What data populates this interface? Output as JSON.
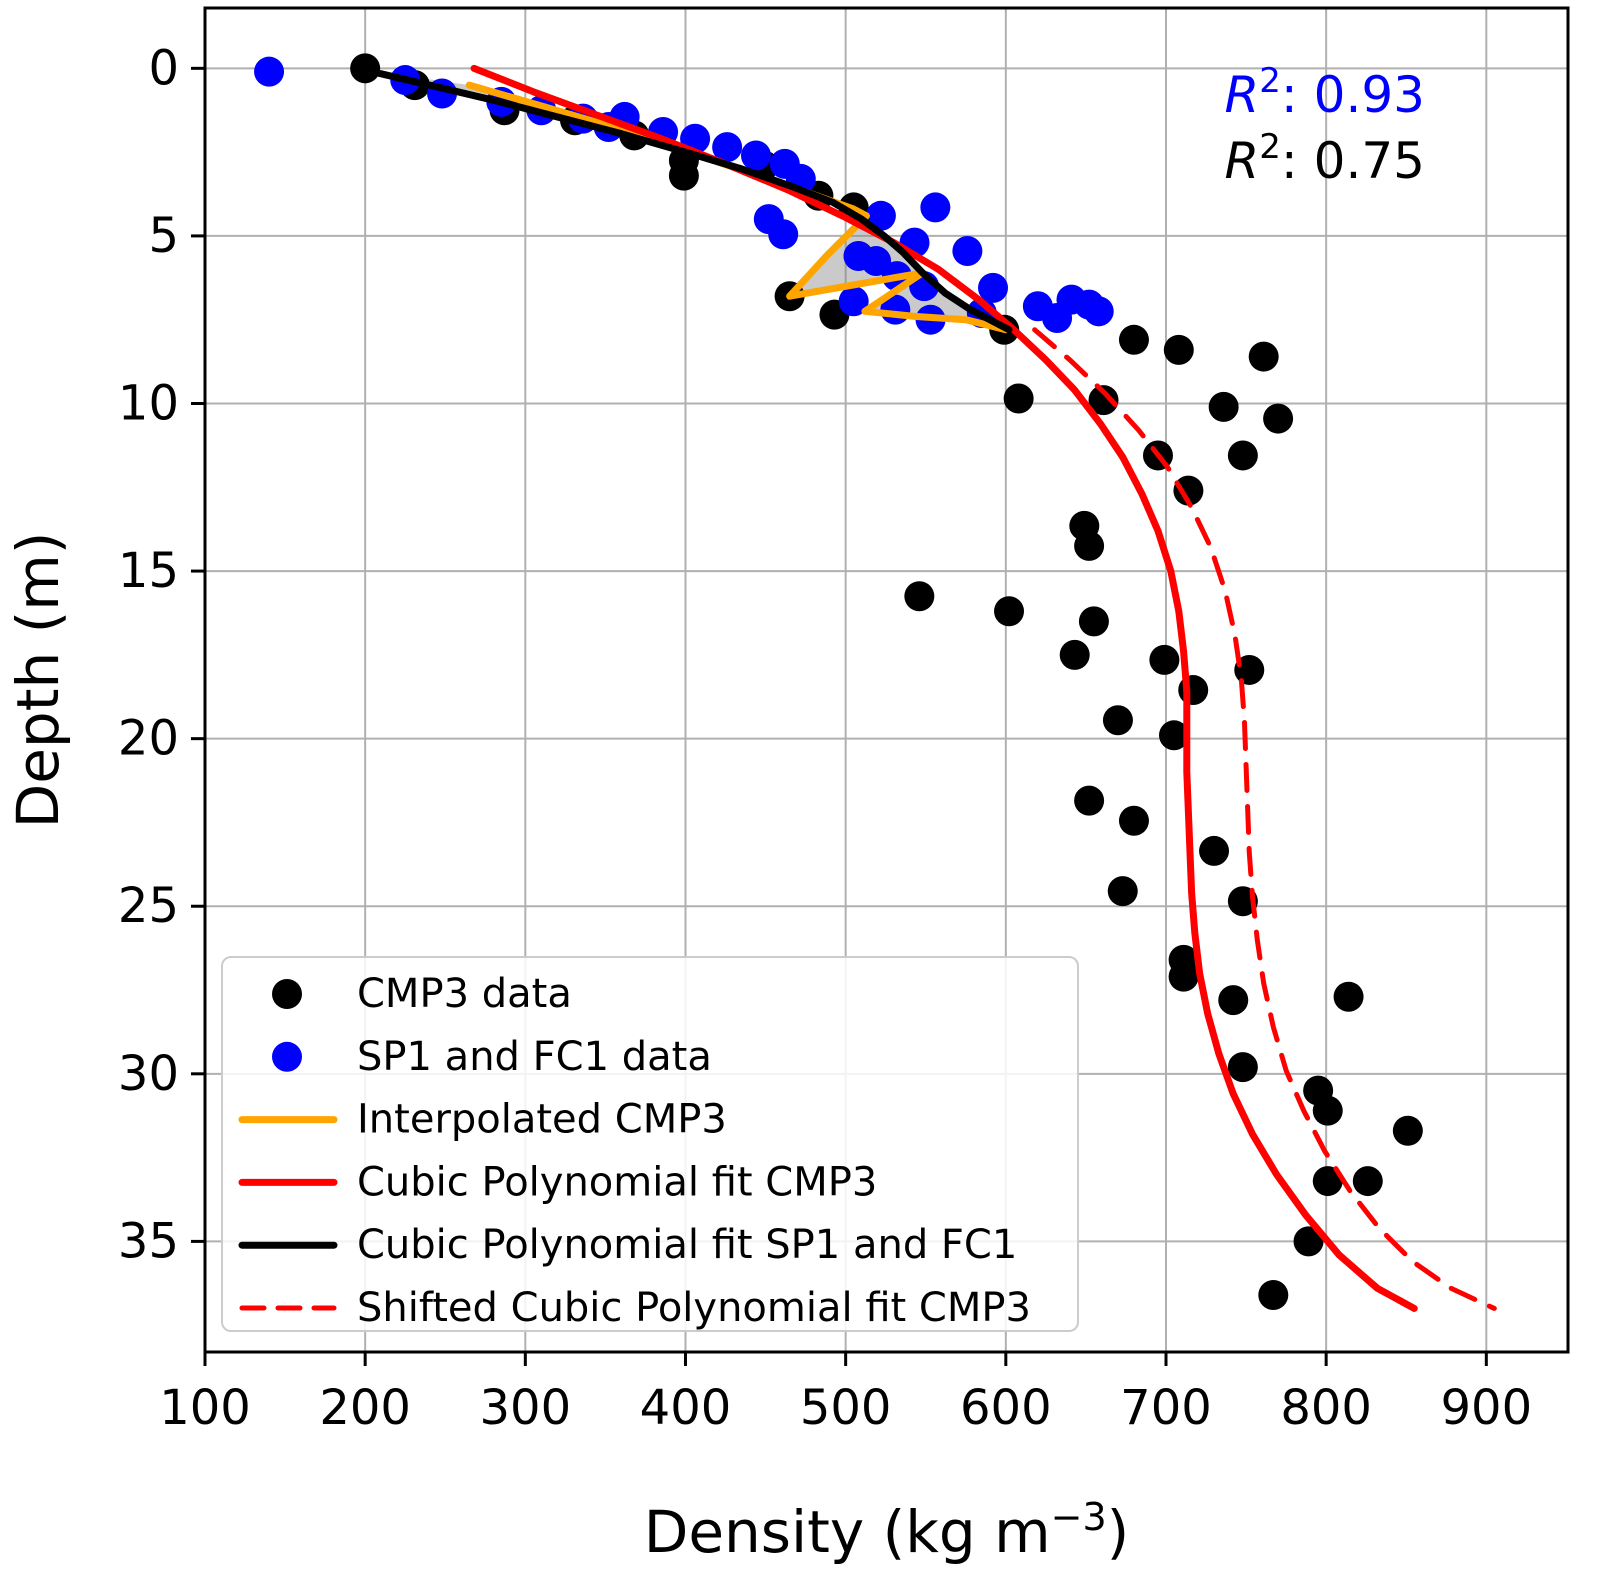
{
  "figure": {
    "background": "#ffffff",
    "annotations": [
      {
        "name": "r2-blue",
        "base": "R",
        "sup": "2",
        "rest": ": 0.93",
        "color": "#0000ff"
      },
      {
        "name": "r2-black",
        "base": "R",
        "sup": "2",
        "rest": ": 0.75",
        "color": "#000000"
      }
    ]
  },
  "chart_data": {
    "type": "scatter",
    "title": "",
    "xlabel": "Density (kg m−3)",
    "xlabel_parts": {
      "base": "Density (kg m",
      "sup": "−3",
      "close": ")"
    },
    "ylabel": "Depth (m)",
    "xlim": [
      100,
      951
    ],
    "ylim": [
      -1.8,
      38.3
    ],
    "y_inverted": true,
    "grid": true,
    "grid_color": "#b0b0b0",
    "xticks": [
      100,
      200,
      300,
      400,
      500,
      600,
      700,
      800,
      900
    ],
    "yticks": [
      0,
      5,
      10,
      15,
      20,
      25,
      30,
      35
    ],
    "shaded_region": {
      "color": "#8a8a8a",
      "opacity": 0.45,
      "between": [
        "Interpolated CMP3",
        "Cubic Polynomial fit SP1 and FC1"
      ]
    },
    "series": [
      {
        "name": "CMP3 data",
        "type": "scatter",
        "color": "#000000",
        "points": [
          [
            200,
            0.0
          ],
          [
            231,
            0.5
          ],
          [
            287,
            1.25
          ],
          [
            331,
            1.55
          ],
          [
            368,
            2.0
          ],
          [
            399,
            2.75
          ],
          [
            399,
            3.2
          ],
          [
            449,
            2.9
          ],
          [
            483,
            3.8
          ],
          [
            505,
            4.15
          ],
          [
            465,
            6.8
          ],
          [
            493,
            7.35
          ],
          [
            599,
            7.8
          ],
          [
            680,
            8.1
          ],
          [
            708,
            8.4
          ],
          [
            761,
            8.6
          ],
          [
            608,
            9.85
          ],
          [
            661,
            9.9
          ],
          [
            736,
            10.1
          ],
          [
            770,
            10.45
          ],
          [
            695,
            11.55
          ],
          [
            748,
            11.55
          ],
          [
            714,
            12.6
          ],
          [
            649,
            13.65
          ],
          [
            652,
            14.25
          ],
          [
            546,
            15.75
          ],
          [
            602,
            16.2
          ],
          [
            655,
            16.5
          ],
          [
            643,
            17.5
          ],
          [
            699,
            17.65
          ],
          [
            752,
            17.95
          ],
          [
            717,
            18.55
          ],
          [
            670,
            19.45
          ],
          [
            705,
            19.9
          ],
          [
            652,
            21.85
          ],
          [
            680,
            22.45
          ],
          [
            730,
            23.35
          ],
          [
            673,
            24.55
          ],
          [
            748,
            24.85
          ],
          [
            711,
            26.6
          ],
          [
            711,
            27.1
          ],
          [
            742,
            27.8
          ],
          [
            814,
            27.7
          ],
          [
            748,
            29.8
          ],
          [
            795,
            30.5
          ],
          [
            801,
            31.1
          ],
          [
            851,
            31.7
          ],
          [
            801,
            33.2
          ],
          [
            826,
            33.2
          ],
          [
            789,
            35.0
          ],
          [
            767,
            36.6
          ]
        ]
      },
      {
        "name": "SP1 and FC1 data",
        "type": "scatter",
        "color": "#0000ff",
        "points": [
          [
            140,
            0.1
          ],
          [
            225,
            0.35
          ],
          [
            248,
            0.75
          ],
          [
            285,
            1.0
          ],
          [
            310,
            1.25
          ],
          [
            336,
            1.5
          ],
          [
            362,
            1.45
          ],
          [
            352,
            1.75
          ],
          [
            386,
            1.9
          ],
          [
            406,
            2.1
          ],
          [
            426,
            2.35
          ],
          [
            444,
            2.6
          ],
          [
            462,
            2.85
          ],
          [
            472,
            3.3
          ],
          [
            452,
            4.5
          ],
          [
            461,
            4.95
          ],
          [
            522,
            4.4
          ],
          [
            556,
            4.15
          ],
          [
            543,
            5.2
          ],
          [
            576,
            5.45
          ],
          [
            519,
            5.75
          ],
          [
            508,
            5.6
          ],
          [
            532,
            6.2
          ],
          [
            549,
            6.5
          ],
          [
            592,
            6.55
          ],
          [
            505,
            6.95
          ],
          [
            531,
            7.2
          ],
          [
            553,
            7.5
          ],
          [
            585,
            7.3
          ],
          [
            620,
            7.1
          ],
          [
            641,
            6.9
          ],
          [
            652,
            7.05
          ],
          [
            658,
            7.25
          ],
          [
            632,
            7.45
          ]
        ]
      },
      {
        "name": "Interpolated CMP3",
        "type": "line",
        "color": "#ffa500",
        "width": 7,
        "points": [
          [
            265,
            0.5
          ],
          [
            312,
            1.15
          ],
          [
            358,
            1.8
          ],
          [
            402,
            2.5
          ],
          [
            433,
            3.0
          ],
          [
            470,
            3.6
          ],
          [
            505,
            4.2
          ],
          [
            513,
            4.4
          ],
          [
            488,
            5.6
          ],
          [
            465,
            6.8
          ],
          [
            548,
            6.1
          ],
          [
            512,
            7.25
          ],
          [
            543,
            7.4
          ],
          [
            575,
            7.5
          ],
          [
            600,
            7.8
          ]
        ]
      },
      {
        "name": "Cubic Polynomial fit CMP3",
        "type": "line",
        "color": "#ff0000",
        "width": 7,
        "points": [
          [
            268,
            0.0
          ],
          [
            305,
            0.7
          ],
          [
            345,
            1.4
          ],
          [
            385,
            2.1
          ],
          [
            425,
            2.85
          ],
          [
            465,
            3.65
          ],
          [
            500,
            4.45
          ],
          [
            530,
            5.2
          ],
          [
            558,
            6.0
          ],
          [
            583,
            6.9
          ],
          [
            605,
            7.8
          ],
          [
            625,
            8.7
          ],
          [
            643,
            9.6
          ],
          [
            659,
            10.6
          ],
          [
            673,
            11.6
          ],
          [
            685,
            12.7
          ],
          [
            695,
            13.8
          ],
          [
            703,
            15.0
          ],
          [
            708,
            16.2
          ],
          [
            711,
            17.4
          ],
          [
            713,
            18.6
          ],
          [
            713,
            19.8
          ],
          [
            713,
            21.0
          ],
          [
            714,
            22.2
          ],
          [
            715,
            23.4
          ],
          [
            716,
            24.6
          ],
          [
            718,
            25.8
          ],
          [
            721,
            27.0
          ],
          [
            726,
            28.2
          ],
          [
            733,
            29.4
          ],
          [
            742,
            30.6
          ],
          [
            754,
            31.8
          ],
          [
            769,
            33.0
          ],
          [
            787,
            34.2
          ],
          [
            808,
            35.4
          ],
          [
            832,
            36.4
          ],
          [
            855,
            37.0
          ]
        ]
      },
      {
        "name": "Cubic Polynomial fit SP1 and FC1",
        "type": "line",
        "color": "#000000",
        "width": 7,
        "points": [
          [
            200,
            0.05
          ],
          [
            240,
            0.5
          ],
          [
            280,
            0.95
          ],
          [
            320,
            1.45
          ],
          [
            360,
            1.95
          ],
          [
            400,
            2.5
          ],
          [
            435,
            3.0
          ],
          [
            465,
            3.5
          ],
          [
            492,
            4.0
          ],
          [
            510,
            4.5
          ],
          [
            524,
            5.0
          ],
          [
            536,
            5.5
          ],
          [
            548,
            6.1
          ],
          [
            562,
            6.7
          ],
          [
            578,
            7.2
          ],
          [
            592,
            7.55
          ],
          [
            602,
            7.8
          ]
        ]
      },
      {
        "name": "Shifted Cubic Polynomial fit CMP3",
        "type": "line",
        "color": "#ff0000",
        "width": 5,
        "dash": "26 16",
        "points": [
          [
            618,
            7.8
          ],
          [
            640,
            8.7
          ],
          [
            662,
            9.7
          ],
          [
            683,
            10.8
          ],
          [
            701,
            11.9
          ],
          [
            716,
            13.1
          ],
          [
            728,
            14.3
          ],
          [
            737,
            15.6
          ],
          [
            743,
            16.9
          ],
          [
            747,
            18.2
          ],
          [
            749,
            19.5
          ],
          [
            750,
            20.8
          ],
          [
            751,
            22.1
          ],
          [
            752,
            23.4
          ],
          [
            754,
            24.7
          ],
          [
            757,
            26.0
          ],
          [
            761,
            27.3
          ],
          [
            767,
            28.6
          ],
          [
            775,
            29.9
          ],
          [
            786,
            31.1
          ],
          [
            799,
            32.3
          ],
          [
            815,
            33.5
          ],
          [
            833,
            34.6
          ],
          [
            854,
            35.6
          ],
          [
            878,
            36.4
          ],
          [
            905,
            37.0
          ]
        ]
      }
    ],
    "legend": {
      "position": "lower left",
      "entries": [
        "CMP3 data",
        "SP1 and FC1 data",
        "Interpolated CMP3",
        "Cubic Polynomial fit CMP3",
        "Cubic Polynomial fit SP1 and FC1",
        "Shifted Cubic Polynomial fit CMP3"
      ]
    }
  }
}
